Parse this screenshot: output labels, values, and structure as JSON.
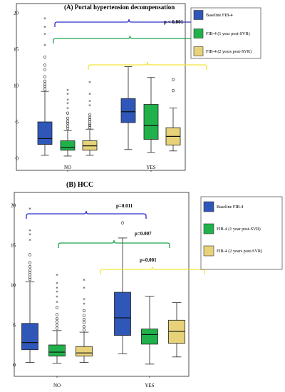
{
  "chart_data": [
    {
      "type": "boxplot",
      "title": "(A)   Portal hypertension decompensation",
      "categories": [
        "NO",
        "YES"
      ],
      "ylim": [
        0,
        20
      ],
      "yticks": [
        0,
        5,
        10,
        15,
        20
      ],
      "legend": {
        "placement": "right"
      },
      "series": [
        {
          "name": "Baseline FIB-4",
          "color": "#2f57b8",
          "boxes": [
            {
              "min": 0.4,
              "q1": 1.9,
              "median": 2.7,
              "q3": 5.0,
              "max": 9.2,
              "outliers": [
                9.5,
                9.9,
                10.2,
                10.6,
                11.2,
                12.2,
                12.8,
                13.9
              ],
              "extremes": [
                15.5,
                17.0,
                18.0,
                19.2
              ]
            },
            {
              "min": 1.2,
              "q1": 4.9,
              "median": 6.4,
              "q3": 8.2,
              "max": 12.6,
              "outliers": [],
              "extremes": []
            }
          ]
        },
        {
          "name": "FIB-4 (1 year post-SVR)",
          "color": "#21b14a",
          "boxes": [
            {
              "min": 0.3,
              "q1": 1.1,
              "median": 1.5,
              "q3": 2.4,
              "max": 3.8,
              "outliers": [
                4.1,
                4.4,
                4.8,
                5.1,
                5.5,
                6.2
              ],
              "extremes": [
                6.8,
                7.5,
                8.0,
                8.8,
                9.3
              ]
            },
            {
              "min": 0.8,
              "q1": 2.6,
              "median": 4.5,
              "q3": 7.4,
              "max": 11.1,
              "outliers": [],
              "extremes": []
            }
          ]
        },
        {
          "name": "FIB-4 (2 years post-SVR)",
          "color": "#e7d27a",
          "boxes": [
            {
              "min": 0.4,
              "q1": 1.1,
              "median": 1.7,
              "q3": 2.4,
              "max": 4.0,
              "outliers": [
                4.2,
                4.5,
                4.7,
                5.0,
                5.3,
                5.6,
                6.0
              ],
              "extremes": [
                7.2,
                7.8,
                8.8,
                10.4
              ]
            },
            {
              "min": 1.0,
              "q1": 1.8,
              "median": 3.0,
              "q3": 4.2,
              "max": 6.9,
              "outliers": [
                9.3,
                10.8
              ],
              "extremes": []
            }
          ]
        }
      ],
      "annotations": [
        {
          "text": "p < 0.001",
          "target_y": 19.0
        }
      ],
      "brackets": [
        {
          "color": "#2d2dcc",
          "y": 20.0,
          "from_series": 0,
          "to_series": 0
        },
        {
          "color": "#1aa34a",
          "y": 17.0,
          "from_series": 1,
          "to_series": 1
        },
        {
          "color": "#f2e33a",
          "y": 13.0,
          "from_series": 2,
          "to_series": 2
        }
      ]
    },
    {
      "type": "boxplot",
      "title": "(B)   HCC",
      "categories": [
        "NO",
        "YES"
      ],
      "ylim": [
        0,
        20
      ],
      "yticks": [
        0,
        5,
        10,
        15,
        20
      ],
      "legend": {
        "placement": "right"
      },
      "series": [
        {
          "name": "Baseline FIB-4",
          "color": "#2f57b8",
          "boxes": [
            {
              "min": 0.3,
              "q1": 1.9,
              "median": 2.8,
              "q3": 5.2,
              "max": 10.4,
              "outliers": [
                10.7,
                11.0,
                11.3,
                11.6,
                11.9,
                12.3,
                12.8,
                13.8
              ],
              "extremes": [
                15.6,
                16.3,
                16.8,
                19.5
              ]
            },
            {
              "min": 1.4,
              "q1": 3.7,
              "median": 5.9,
              "q3": 9.1,
              "max": 15.9,
              "outliers": [
                17.8
              ],
              "extremes": []
            }
          ]
        },
        {
          "name": "FIB-4 (1 year post-SVR)",
          "color": "#21b14a",
          "boxes": [
            {
              "min": 0.2,
              "q1": 1.1,
              "median": 1.6,
              "q3": 2.5,
              "max": 4.3,
              "outliers": [
                4.6,
                5.0,
                5.4,
                5.8,
                6.3,
                7.2
              ],
              "extremes": [
                7.8,
                8.5,
                9.1,
                9.6,
                10.2,
                11.2
              ]
            },
            {
              "min": 0.1,
              "q1": 2.6,
              "median": 3.8,
              "q3": 4.5,
              "max": 8.6,
              "outliers": [],
              "extremes": []
            }
          ]
        },
        {
          "name": "FIB-4 (2 years post-SVR)",
          "color": "#e7d27a",
          "boxes": [
            {
              "min": 0.3,
              "q1": 1.1,
              "median": 1.5,
              "q3": 2.3,
              "max": 4.1,
              "outliers": [
                4.4,
                4.8,
                5.3,
                5.7,
                6.2,
                6.8
              ],
              "extremes": [
                7.6,
                8.2,
                9.6,
                10.6
              ]
            },
            {
              "min": 1.0,
              "q1": 2.7,
              "median": 4.2,
              "q3": 5.6,
              "max": 7.8,
              "outliers": [],
              "extremes": []
            }
          ]
        }
      ],
      "annotations": [
        {
          "text": "p=0.011",
          "target_y": 19.2
        },
        {
          "text": "p=0.007",
          "target_y": 15.6
        },
        {
          "text": "p=0.001",
          "target_y": 12.6
        }
      ],
      "brackets": [
        {
          "color": "#2d2dcc",
          "y": 18.8,
          "from_series": 0,
          "to_series": 0
        },
        {
          "color": "#1aa34a",
          "y": 14.8,
          "from_series": 1,
          "to_series": 1
        },
        {
          "color": "#f2e33a",
          "y": 11.6,
          "from_series": 2,
          "to_series": 2
        }
      ]
    }
  ]
}
